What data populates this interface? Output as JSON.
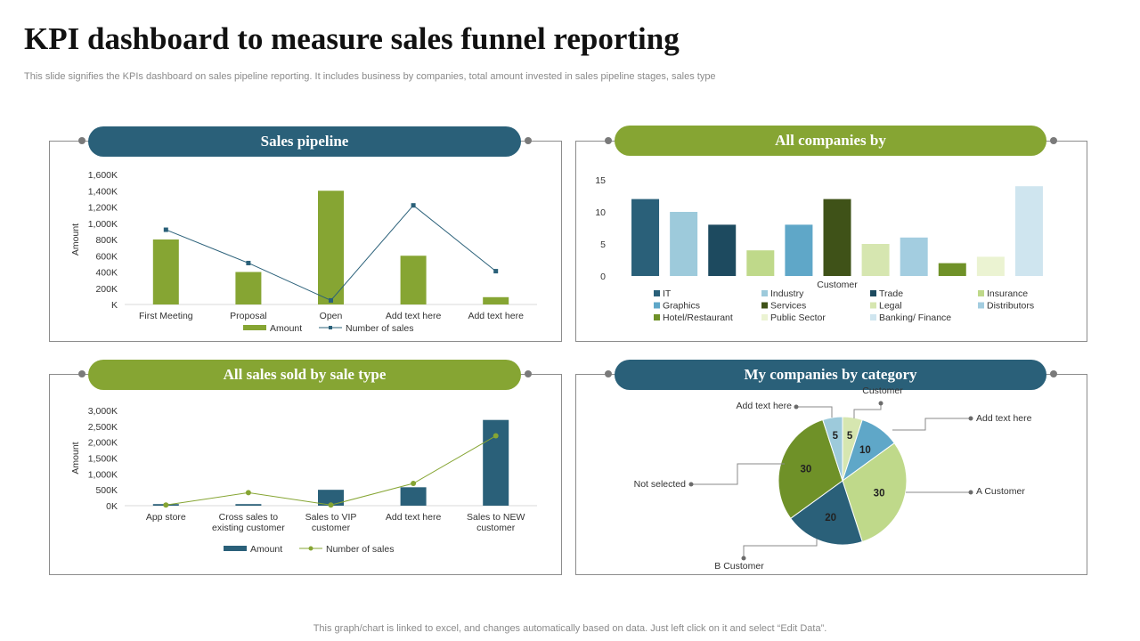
{
  "header": {
    "title": "KPI dashboard to measure sales funnel reporting",
    "subtitle": "This slide signifies the KPIs dashboard on sales pipeline reporting. It includes business by companies, total amount invested in sales pipeline stages, sales type"
  },
  "footer": {
    "note": "This graph/chart is linked to excel,  and changes automatically based on data. Just left click on it and select “Edit Data”."
  },
  "panels": {
    "sales_pipeline": {
      "title": "Sales pipeline"
    },
    "all_companies": {
      "title": "All companies by"
    },
    "sale_type": {
      "title": "All sales sold by sale type"
    },
    "category": {
      "title": "My companies by category"
    }
  },
  "colors": {
    "blue": "#2a6079",
    "green": "#86a533",
    "axis": "#d9d9d9"
  },
  "chart_data": [
    {
      "id": "sales_pipeline",
      "type": "bar",
      "title": "Sales pipeline",
      "categories": [
        "First Meeting",
        "Proposal",
        "Open",
        "Add text here",
        "Add text here"
      ],
      "ylabel": "Amount",
      "ylim": [
        0,
        1600
      ],
      "yticks": [
        0,
        200,
        400,
        600,
        800,
        1000,
        1200,
        1400,
        1600
      ],
      "ytick_labels": [
        "K",
        "200K",
        "400K",
        "600K",
        "800K",
        "1,000K",
        "1,200K",
        "1,400K",
        "1,600K"
      ],
      "series": [
        {
          "name": "Amount",
          "kind": "bar",
          "color": "#86a533",
          "values": [
            800,
            400,
            1400,
            600,
            90
          ]
        },
        {
          "name": "Number of sales",
          "kind": "line",
          "color": "#2a6079",
          "values": [
            920,
            510,
            50,
            1220,
            410
          ]
        }
      ],
      "legend": "bottom"
    },
    {
      "id": "all_companies",
      "type": "bar",
      "title": "All companies by",
      "xlabel": "Customer",
      "ylim": [
        0,
        15
      ],
      "yticks": [
        0,
        5,
        10,
        15
      ],
      "ytick_labels": [
        "0",
        "5",
        "10",
        "15"
      ],
      "series": [
        {
          "name": "IT",
          "color": "#2a6079",
          "value": 12
        },
        {
          "name": "Industry",
          "color": "#9dcadb",
          "value": 10
        },
        {
          "name": "Trade",
          "color": "#1d4a5f",
          "value": 8
        },
        {
          "name": "Insurance",
          "color": "#bfd98a",
          "value": 4
        },
        {
          "name": "Graphics",
          "color": "#5fa7c8",
          "value": 8
        },
        {
          "name": "Services",
          "color": "#3f5218",
          "value": 12
        },
        {
          "name": "Legal",
          "color": "#d6e6b0",
          "value": 5
        },
        {
          "name": "Distributors",
          "color": "#a3cde0",
          "value": 6
        },
        {
          "name": "Hotel/Restaurant",
          "color": "#6f9128",
          "value": 2
        },
        {
          "name": "Public Sector",
          "color": "#ebf3d2",
          "value": 3
        },
        {
          "name": "Banking/ Finance",
          "color": "#cfe5ef",
          "value": 14
        }
      ],
      "legend": "bottom"
    },
    {
      "id": "sale_type",
      "type": "bar",
      "title": "All sales sold by sale type",
      "categories": [
        [
          "App store"
        ],
        [
          "Cross sales to",
          "existing customer"
        ],
        [
          "Sales to VIP",
          "customer"
        ],
        [
          "Add text here"
        ],
        [
          "Sales to NEW",
          "customer"
        ]
      ],
      "ylabel": "Amount",
      "ylim": [
        0,
        3000
      ],
      "yticks": [
        0,
        500,
        1000,
        1500,
        2000,
        2500,
        3000
      ],
      "ytick_labels": [
        "0K",
        "500K",
        "1,000K",
        "1,500K",
        "2,000K",
        "2,500K",
        "3,000K"
      ],
      "series": [
        {
          "name": "Amount",
          "kind": "bar",
          "color": "#2a6079",
          "values": [
            50,
            50,
            500,
            580,
            2700
          ]
        },
        {
          "name": "Number of sales",
          "kind": "line",
          "color": "#86a533",
          "values": [
            20,
            410,
            20,
            700,
            2200
          ]
        }
      ],
      "legend": "bottom"
    },
    {
      "id": "category",
      "type": "pie",
      "title": "My companies by category",
      "slices": [
        {
          "label": "Customer",
          "value": 5,
          "color": "#d6e6b0"
        },
        {
          "label": "Add text here",
          "value": 10,
          "color": "#5fa7c8"
        },
        {
          "label": "A Customer",
          "value": 30,
          "color": "#bfd98a"
        },
        {
          "label": "B Customer",
          "value": 20,
          "color": "#2a6079"
        },
        {
          "label": "Not selected",
          "value": 30,
          "color": "#6f9128"
        },
        {
          "label": "Add text here",
          "value": 5,
          "color": "#9dcadb"
        }
      ]
    }
  ]
}
